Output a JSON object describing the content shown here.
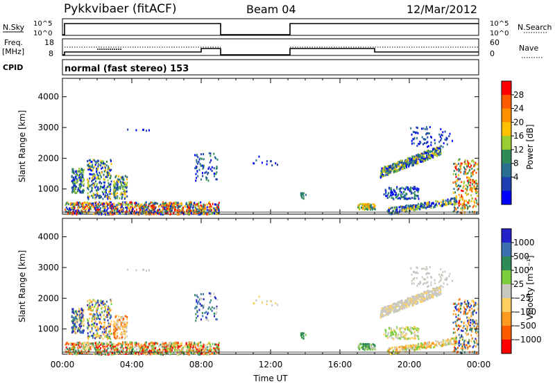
{
  "header": {
    "title": "Pykkvibaer (fitACF)",
    "beam": "Beam 04",
    "date": "12/Mar/2012"
  },
  "status_panels": {
    "nsky": {
      "left_label": "N.Sky",
      "right_label": "N.Search",
      "left_ticks": [
        "10^5",
        "10^0"
      ],
      "right_ticks": [
        "10^5",
        "10^0"
      ]
    },
    "freq": {
      "left_label_1": "Freq.",
      "left_label_2": "[MHz]",
      "right_label": "Nave",
      "left_ticks": [
        "18",
        "8"
      ],
      "right_ticks": [
        "60",
        "0"
      ]
    },
    "cpid": {
      "label": "CPID",
      "text": "normal (fast stereo) 153"
    }
  },
  "chart_data": [
    {
      "type": "heatmap",
      "id": "power",
      "xlabel": "",
      "ylabel": "Slant Range [km]",
      "y_ticks": [
        "1000",
        "2000",
        "3000",
        "4000"
      ],
      "x_ticks": [
        "00:00",
        "04:00",
        "08:00",
        "12:00",
        "16:00",
        "20:00",
        "00:00"
      ],
      "xlim_hours": [
        0,
        24
      ],
      "ylim_km": [
        180,
        4600
      ],
      "colorbar": {
        "label": "Power [dB]",
        "ticks": [
          "28",
          "24",
          "20",
          "16",
          "12",
          "8",
          "4"
        ],
        "colors": [
          "#ff0000",
          "#ff5a00",
          "#ff9000",
          "#ffc000",
          "#9acd32",
          "#2e8b57",
          "#2a6f8f",
          "#1f3fb0",
          "#0000ff"
        ]
      },
      "data_windows_hours": [
        [
          0,
          9.1
        ],
        [
          13,
          24
        ]
      ]
    },
    {
      "type": "heatmap",
      "id": "velocity",
      "xlabel": "Time UT",
      "ylabel": "Slant Range [km]",
      "y_ticks": [
        "1000",
        "2000",
        "3000",
        "4000"
      ],
      "x_ticks": [
        "00:00",
        "04:00",
        "08:00",
        "12:00",
        "16:00",
        "20:00",
        "00:00"
      ],
      "xlim_hours": [
        0,
        24
      ],
      "ylim_km": [
        180,
        4600
      ],
      "colorbar": {
        "label": "Velocity [m s⁻¹]",
        "ticks": [
          "1000",
          "500",
          "100",
          "25",
          "−25",
          "−100",
          "−500",
          "−1000"
        ],
        "colors": [
          "#2222c8",
          "#3a6fb0",
          "#2e8b57",
          "#7ccd3c",
          "#c8c8c0",
          "#ffd060",
          "#ff9a20",
          "#ff5a00",
          "#ff0000"
        ]
      }
    }
  ]
}
